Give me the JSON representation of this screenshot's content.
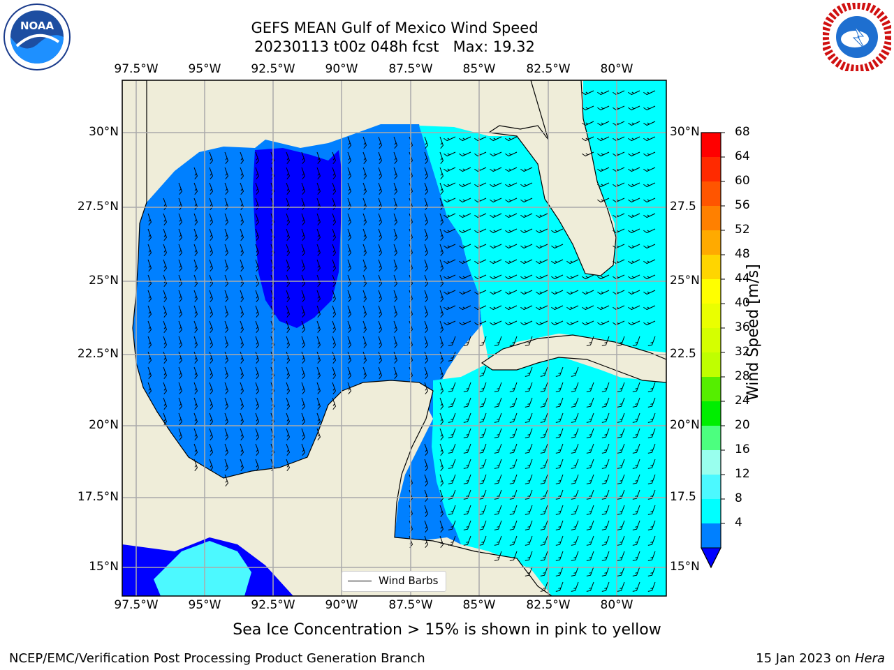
{
  "title": {
    "line1": "GEFS MEAN Gulf of Mexico Wind Speed",
    "line2": "20230113 t00z 048h fcst   Max: 19.32"
  },
  "logos": {
    "left": {
      "icon": "noaa-logo",
      "text": "NOAA"
    },
    "right": {
      "icon": "nws-logo",
      "text": "NATIONAL WEATHER SERVICE"
    }
  },
  "axes": {
    "lon_labels": [
      "97.5°W",
      "95°W",
      "92.5°W",
      "90°W",
      "87.5°W",
      "85°W",
      "82.5°W",
      "80°W"
    ],
    "lat_labels_left": [
      "30°N",
      "27.5°N",
      "25°N",
      "22.5°N",
      "20°N",
      "17.5°N",
      "15°N"
    ],
    "lat_labels_right": [
      "30°N",
      "27.5",
      "25°N",
      "22.5",
      "20°N",
      "17.5",
      "15°N"
    ]
  },
  "legend": {
    "label": "Wind Barbs"
  },
  "colorbar": {
    "label": "Wind Speed [m/s]",
    "ticks": [
      "68",
      "64",
      "60",
      "56",
      "52",
      "48",
      "44",
      "40",
      "36",
      "32",
      "28",
      "24",
      "20",
      "16",
      "12",
      "8",
      "4"
    ],
    "colors": [
      "#ff0000",
      "#ff2a00",
      "#ff5500",
      "#ff8000",
      "#ffaa00",
      "#ffd500",
      "#ffff00",
      "#eaff00",
      "#d5ff00",
      "#bfff00",
      "#55ee00",
      "#00ee00",
      "#4cff7f",
      "#99ffee",
      "#4cf9ff",
      "#00ffff",
      "#0080ff"
    ],
    "extend_color": "#0000ff"
  },
  "colors": {
    "land": "#efedd9",
    "ocean_4_8": "#0080ff",
    "ocean_0_4": "#0000ff",
    "ocean_8_12": "#00ffff",
    "ocean_12_16": "#4cf9ff",
    "ocean_16_20": "#99ffee"
  },
  "note": "Sea Ice Concentration > 15% is shown in pink to yellow",
  "footer": {
    "left": "NCEP/EMC/Verification Post Processing Product Generation Branch",
    "right_date": "15 Jan 2023 on ",
    "right_host": "Hera"
  }
}
